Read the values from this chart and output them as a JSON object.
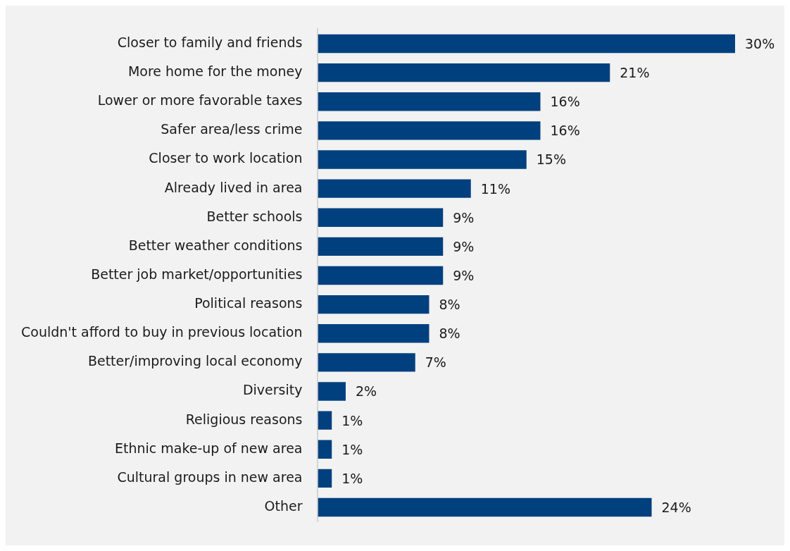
{
  "chart_data": {
    "type": "bar",
    "orientation": "horizontal",
    "categories": [
      "Closer to family and friends",
      "More home for the money",
      "Lower or more favorable taxes",
      "Safer area/less crime",
      "Closer to work location",
      "Already lived in area",
      "Better schools",
      "Better weather conditions",
      "Better job market/opportunities",
      "Political reasons",
      "Couldn't afford to buy in previous location",
      "Better/improving local economy",
      "Diversity",
      "Religious reasons",
      "Ethnic make-up of new area",
      "Cultural groups in new area",
      "Other"
    ],
    "values": [
      30,
      21,
      16,
      16,
      15,
      11,
      9,
      9,
      9,
      8,
      8,
      7,
      2,
      1,
      1,
      1,
      24
    ],
    "value_labels": [
      "30%",
      "21%",
      "16%",
      "16%",
      "15%",
      "11%",
      "9%",
      "9%",
      "9%",
      "8%",
      "8%",
      "7%",
      "2%",
      "1%",
      "1%",
      "1%",
      "24%"
    ],
    "color": "#00407f",
    "grid": false,
    "legend": false
  }
}
